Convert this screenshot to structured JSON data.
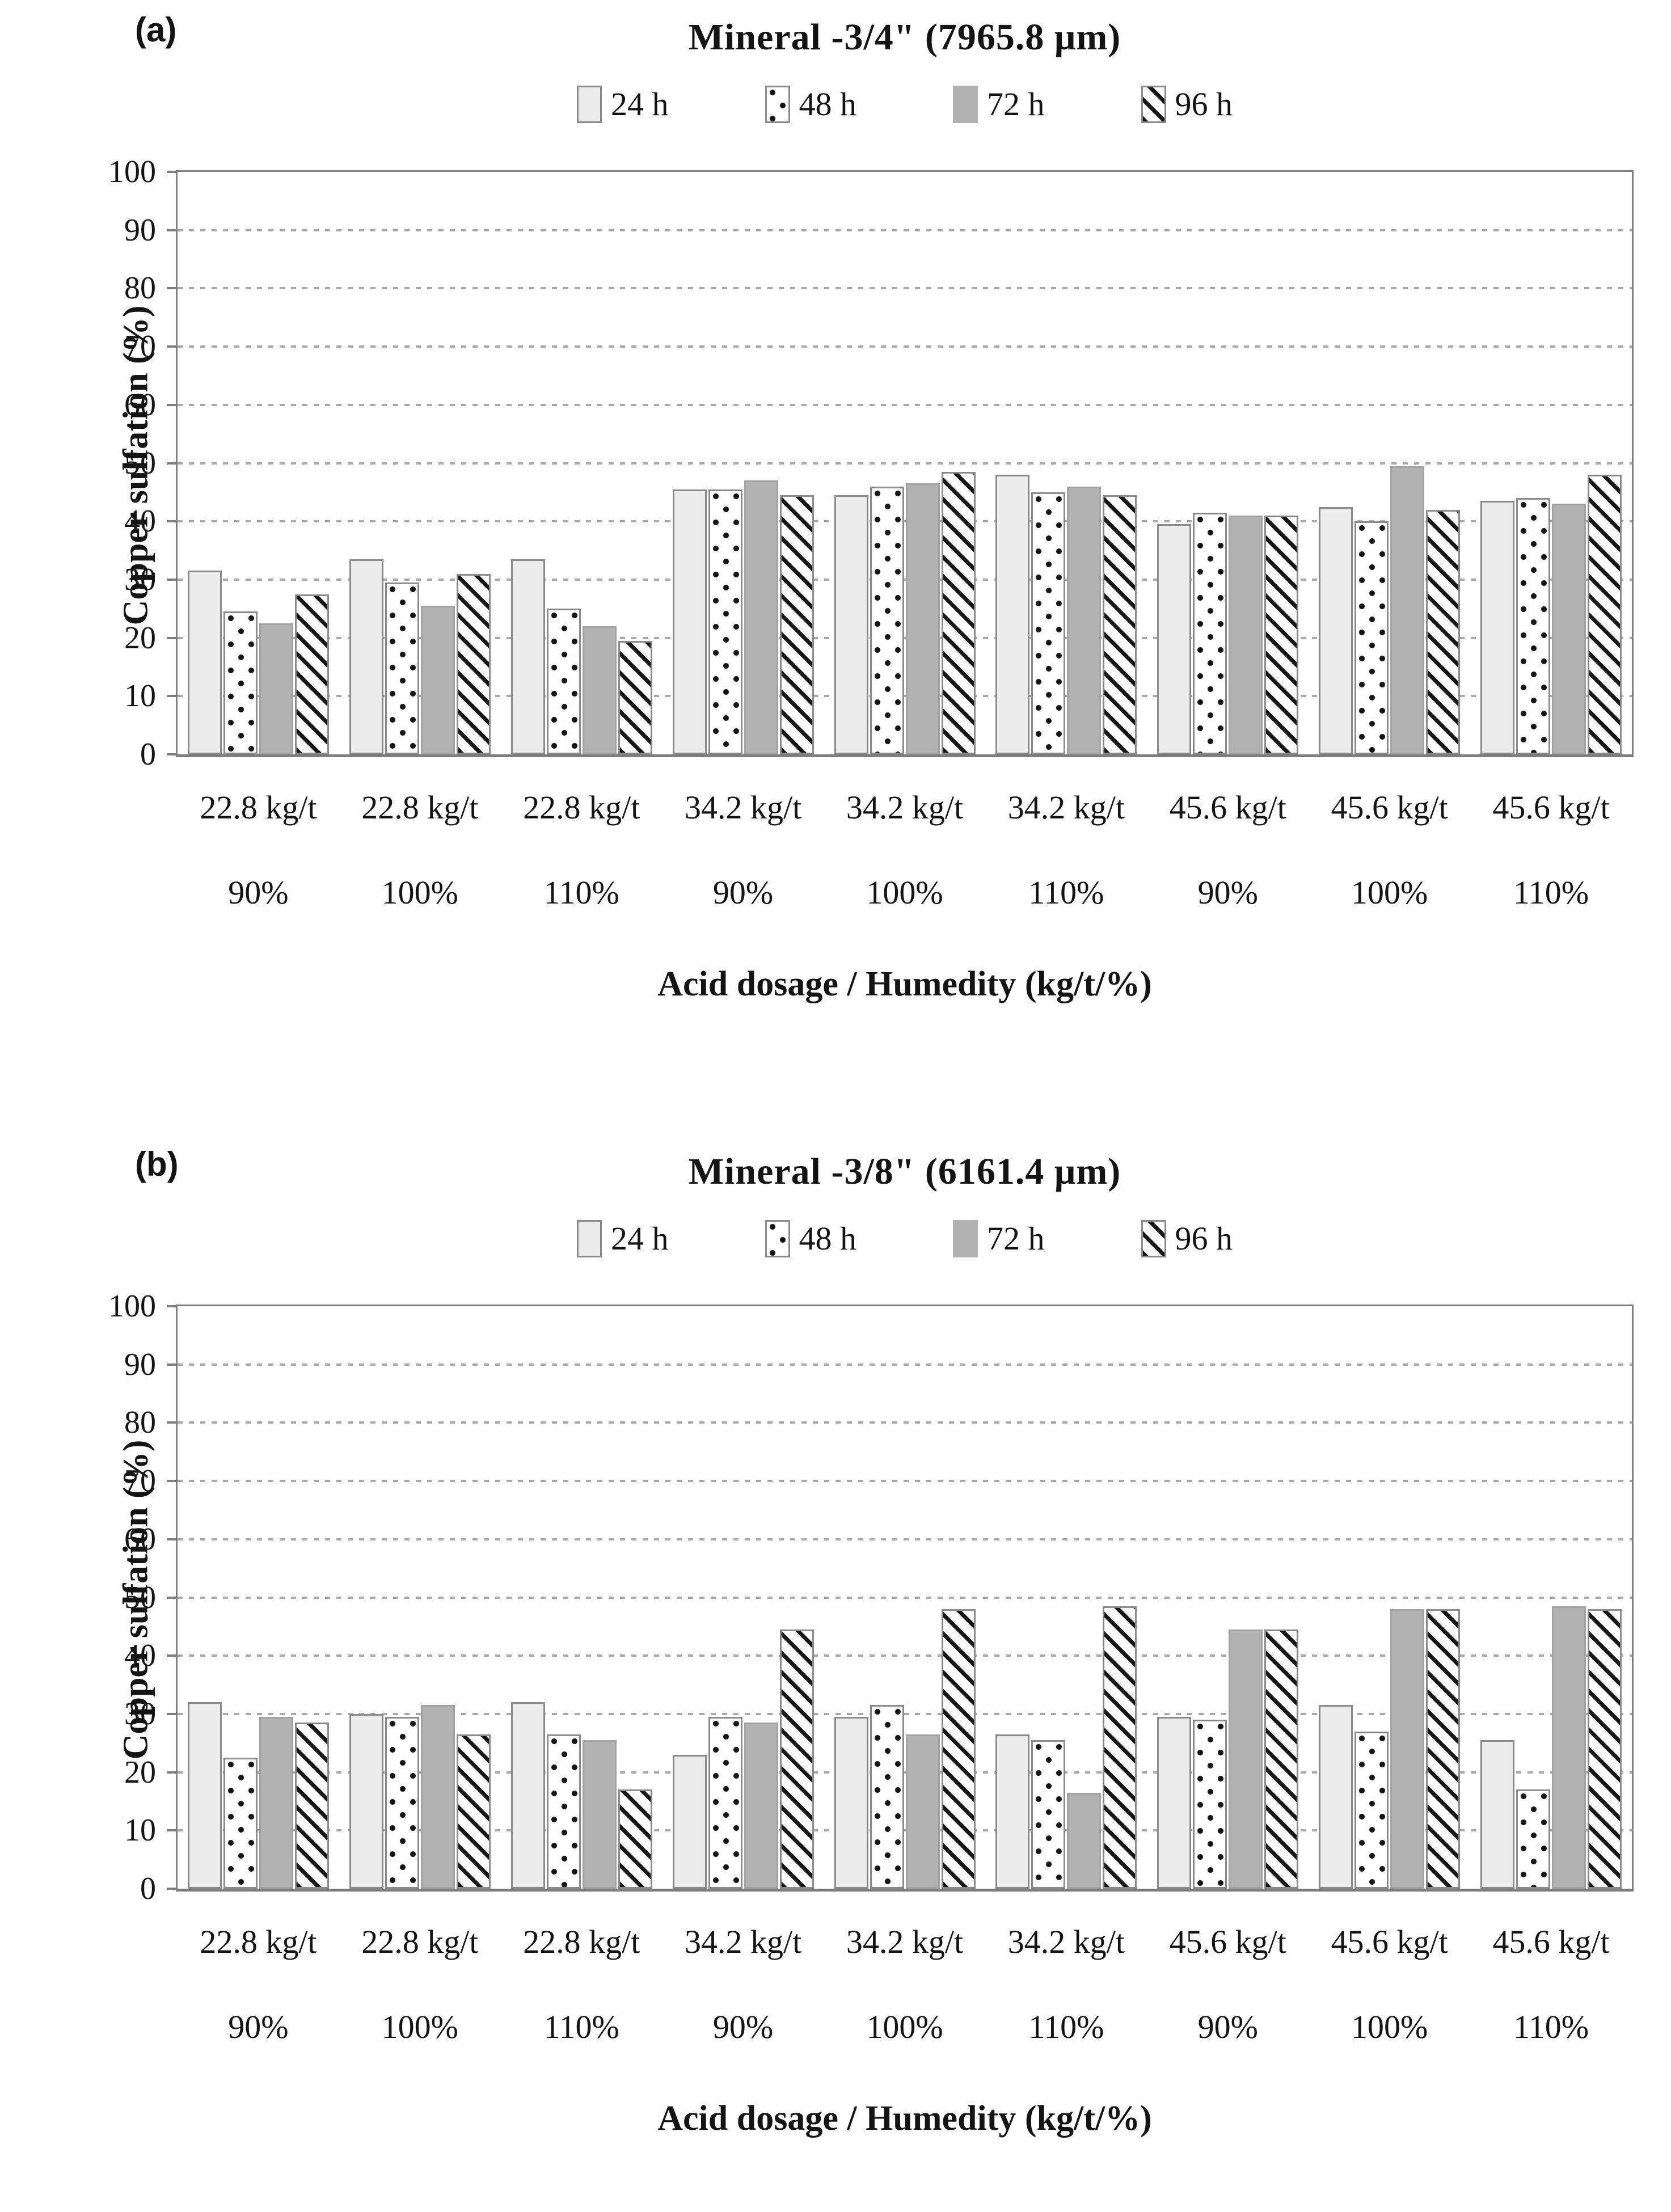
{
  "styles": {
    "bar_24h_fill": "#ececec",
    "bar_72h_fill": "#b2b2b2",
    "bar_border": "#8a8a8a",
    "dot_pattern_color": "#141414",
    "hatch_pattern_color": "#161616",
    "gridline_color": "#a9a9a9",
    "axis_color": "#7e7e7e",
    "text_color": "#141414"
  },
  "chart_data": [
    {
      "type": "bar",
      "panel_label": "(a)",
      "title": "Mineral -3/4\" (7965.8 μm)",
      "legend": [
        "24 h",
        "48 h",
        "72 h",
        "96 h"
      ],
      "legend_position": "top",
      "grid": "horizontal-dotted",
      "ylabel": "Copper sulfation (%)",
      "xlabel": "Acid dosage / Humedity (kg/t/%)",
      "ylim": [
        0,
        100
      ],
      "yticks": [
        0,
        10,
        20,
        30,
        40,
        50,
        60,
        70,
        80,
        90,
        100
      ],
      "categories": [
        [
          "22.8 kg/t",
          "90%"
        ],
        [
          "22.8 kg/t",
          "100%"
        ],
        [
          "22.8 kg/t",
          "110%"
        ],
        [
          "34.2 kg/t",
          "90%"
        ],
        [
          "34.2 kg/t",
          "100%"
        ],
        [
          "34.2 kg/t",
          "110%"
        ],
        [
          "45.6 kg/t",
          "90%"
        ],
        [
          "45.6 kg/t",
          "100%"
        ],
        [
          "45.6 kg/t",
          "110%"
        ]
      ],
      "series": [
        {
          "name": "24 h",
          "values": [
            31.5,
            33.5,
            33.5,
            45.5,
            44.5,
            48.0,
            39.5,
            42.5,
            43.5
          ]
        },
        {
          "name": "48 h",
          "values": [
            24.5,
            29.5,
            25.0,
            45.5,
            46.0,
            45.0,
            41.5,
            40.0,
            44.0
          ]
        },
        {
          "name": "72 h",
          "values": [
            22.5,
            25.5,
            22.0,
            47.0,
            46.5,
            46.0,
            41.0,
            49.5,
            43.0
          ]
        },
        {
          "name": "96 h",
          "values": [
            27.5,
            31.0,
            19.5,
            44.5,
            48.5,
            44.5,
            41.0,
            42.0,
            48.0
          ]
        }
      ]
    },
    {
      "type": "bar",
      "panel_label": "(b)",
      "title": "Mineral -3/8\" (6161.4 μm)",
      "legend": [
        "24 h",
        "48 h",
        "72 h",
        "96 h"
      ],
      "legend_position": "top",
      "grid": "horizontal-dotted",
      "ylabel": "Copper sulfation (%)",
      "xlabel": "Acid dosage / Humedity (kg/t/%)",
      "ylim": [
        0,
        100
      ],
      "yticks": [
        0,
        10,
        20,
        30,
        40,
        50,
        60,
        70,
        80,
        90,
        100
      ],
      "categories": [
        [
          "22.8 kg/t",
          "90%"
        ],
        [
          "22.8 kg/t",
          "100%"
        ],
        [
          "22.8 kg/t",
          "110%"
        ],
        [
          "34.2 kg/t",
          "90%"
        ],
        [
          "34.2 kg/t",
          "100%"
        ],
        [
          "34.2 kg/t",
          "110%"
        ],
        [
          "45.6 kg/t",
          "90%"
        ],
        [
          "45.6 kg/t",
          "100%"
        ],
        [
          "45.6 kg/t",
          "110%"
        ]
      ],
      "series": [
        {
          "name": "24 h",
          "values": [
            32.0,
            30.0,
            32.0,
            23.0,
            29.5,
            26.5,
            29.5,
            31.5,
            25.5
          ]
        },
        {
          "name": "48 h",
          "values": [
            22.5,
            29.5,
            26.5,
            29.5,
            31.5,
            25.5,
            29.0,
            27.0,
            17.0
          ]
        },
        {
          "name": "72 h",
          "values": [
            29.5,
            31.5,
            25.5,
            28.5,
            26.5,
            16.5,
            44.5,
            48.0,
            48.5
          ]
        },
        {
          "name": "96 h",
          "values": [
            28.5,
            26.5,
            17.0,
            44.5,
            48.0,
            48.5,
            44.5,
            48.0,
            48.0
          ]
        }
      ]
    }
  ]
}
